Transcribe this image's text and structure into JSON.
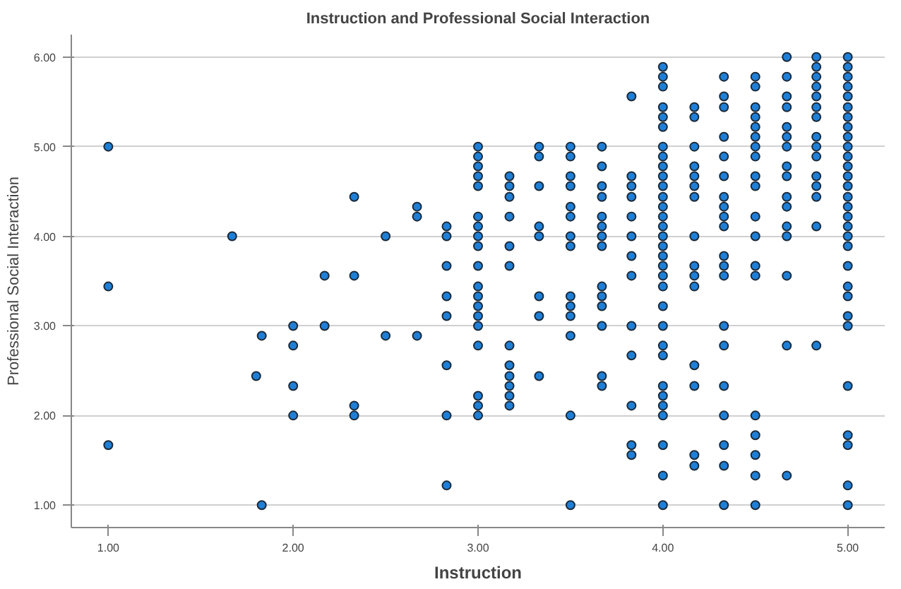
{
  "chart_data": {
    "type": "scatter",
    "title": "Instruction and Professional Social Interaction",
    "xlabel": "Instruction",
    "ylabel": "Professional Social Interaction",
    "xlim": [
      0.8,
      5.2
    ],
    "ylim": [
      0.75,
      6.25
    ],
    "xticks": [
      {
        "value": 1,
        "label": "1.00"
      },
      {
        "value": 2,
        "label": "2.00"
      },
      {
        "value": 3,
        "label": "3.00"
      },
      {
        "value": 4,
        "label": "4.00"
      },
      {
        "value": 5,
        "label": "5.00"
      }
    ],
    "yticks": [
      {
        "value": 1,
        "label": "1.00"
      },
      {
        "value": 2,
        "label": "2.00"
      },
      {
        "value": 3,
        "label": "3.00"
      },
      {
        "value": 4,
        "label": "4.00"
      },
      {
        "value": 5,
        "label": "5.00"
      },
      {
        "value": 6,
        "label": "6.00"
      }
    ],
    "grid": "y",
    "marker": "circle",
    "series": [
      {
        "color": "#1f7fd6",
        "x": [
          1,
          1,
          1,
          1.67,
          1.8,
          1.83,
          1.83,
          2,
          2,
          2,
          2,
          2.17,
          2.17,
          2.33,
          2.33,
          2.33,
          2.33,
          2.5,
          2.5,
          2.67,
          2.67,
          2.67,
          2.83,
          2.83,
          2.83,
          2.83,
          2.83,
          2.83,
          2.83,
          2.83,
          3,
          3,
          3,
          3,
          3,
          3,
          3,
          3,
          3,
          3,
          3,
          3,
          3,
          3,
          3,
          3,
          3,
          3,
          3,
          3.17,
          3.17,
          3.17,
          3.17,
          3.17,
          3.17,
          3.17,
          3.17,
          3.17,
          3.17,
          3.17,
          3.17,
          3.33,
          3.33,
          3.33,
          3.33,
          3.33,
          3.33,
          3.33,
          3.33,
          3.5,
          3.5,
          3.5,
          3.5,
          3.5,
          3.5,
          3.5,
          3.5,
          3.5,
          3.5,
          3.5,
          3.5,
          3.5,
          3.5,
          3.67,
          3.67,
          3.67,
          3.67,
          3.67,
          3.67,
          3.67,
          3.67,
          3.67,
          3.67,
          3.67,
          3.67,
          3.67,
          3.67,
          3.83,
          3.83,
          3.83,
          3.83,
          3.83,
          3.83,
          3.83,
          3.83,
          3.83,
          3.83,
          3.83,
          3.83,
          3.83,
          4,
          4,
          4,
          4,
          4,
          4,
          4,
          4,
          4,
          4,
          4,
          4,
          4,
          4,
          4,
          4,
          4,
          4,
          4,
          4,
          4,
          4,
          4,
          4,
          4,
          4,
          4,
          4,
          4,
          4,
          4,
          4,
          4.17,
          4.17,
          4.17,
          4.17,
          4.17,
          4.17,
          4.17,
          4.17,
          4.17,
          4.17,
          4.17,
          4.17,
          4.17,
          4.17,
          4.17,
          4.33,
          4.33,
          4.33,
          4.33,
          4.33,
          4.33,
          4.33,
          4.33,
          4.33,
          4.33,
          4.33,
          4.33,
          4.33,
          4.33,
          4.33,
          4.33,
          4.33,
          4.33,
          4.33,
          4.33,
          4.5,
          4.5,
          4.5,
          4.5,
          4.5,
          4.5,
          4.5,
          4.5,
          4.5,
          4.5,
          4.5,
          4.5,
          4.5,
          4.5,
          4.5,
          4.5,
          4.5,
          4.5,
          4.5,
          4.67,
          4.67,
          4.67,
          4.67,
          4.67,
          4.67,
          4.67,
          4.67,
          4.67,
          4.67,
          4.67,
          4.67,
          4.67,
          4.67,
          4.67,
          4.67,
          4.83,
          4.83,
          4.83,
          4.83,
          4.83,
          4.83,
          4.83,
          4.83,
          4.83,
          4.83,
          4.83,
          4.83,
          4.83,
          4.83,
          4.83,
          5,
          5,
          5,
          5,
          5,
          5,
          5,
          5,
          5,
          5,
          5,
          5,
          5,
          5,
          5,
          5,
          5,
          5,
          5,
          5,
          5,
          5,
          5,
          5,
          5,
          5,
          5,
          5,
          5,
          5
        ],
        "values": [
          5,
          3.44,
          1.67,
          4,
          2.44,
          2.89,
          1,
          3,
          2.78,
          2.33,
          2,
          3.56,
          3,
          4.44,
          3.56,
          2.11,
          2,
          4,
          2.89,
          4.33,
          4.22,
          2.89,
          4.11,
          4,
          3.67,
          3.33,
          3.11,
          2.56,
          2,
          1.22,
          5,
          4.89,
          4.78,
          4.67,
          4.56,
          4.22,
          4.11,
          4,
          3.89,
          3.67,
          3.44,
          3.33,
          3.22,
          3.11,
          3,
          2.78,
          2.22,
          2.11,
          2,
          4.67,
          4.56,
          4.44,
          4.22,
          3.89,
          3.67,
          2.78,
          2.56,
          2.44,
          2.33,
          2.22,
          2.11,
          5,
          4.89,
          4.56,
          4.11,
          4,
          3.33,
          3.11,
          2.44,
          5,
          4.89,
          4.67,
          4.56,
          4.33,
          4.22,
          4,
          3.89,
          3.33,
          3.22,
          3.11,
          2.89,
          2,
          1,
          5,
          4.78,
          4.56,
          4.44,
          4.22,
          4.11,
          4,
          3.89,
          3.44,
          3.33,
          3.22,
          3,
          2.44,
          2.33,
          5.56,
          4.67,
          4.56,
          4.44,
          4.22,
          4,
          3.78,
          3.56,
          3,
          2.67,
          2.11,
          1.67,
          1.56,
          5.89,
          5.78,
          5.67,
          5.44,
          5.33,
          5.22,
          5,
          4.89,
          4.78,
          4.67,
          4.56,
          4.44,
          4.33,
          4.22,
          4.11,
          4,
          3.89,
          3.78,
          3.67,
          3.56,
          3.44,
          3.22,
          3,
          2.78,
          2.67,
          2.33,
          2.22,
          2.11,
          2,
          1.67,
          1.33,
          1,
          5.44,
          5.33,
          5,
          4.78,
          4.67,
          4.56,
          4.44,
          4,
          3.67,
          3.56,
          3.44,
          2.56,
          2.33,
          1.56,
          1.44,
          5.78,
          5.56,
          5.44,
          5.11,
          4.89,
          4.67,
          4.44,
          4.33,
          4.22,
          4.11,
          3.78,
          3.67,
          3.56,
          3,
          2.78,
          2.33,
          2,
          1.67,
          1.44,
          1,
          5.78,
          5.67,
          5.44,
          5.33,
          5.22,
          5.11,
          5,
          4.89,
          4.67,
          4.56,
          4.22,
          4,
          3.67,
          3.56,
          2,
          1.78,
          1.56,
          1.33,
          1,
          6,
          5.78,
          5.56,
          5.44,
          5.22,
          5.11,
          5,
          4.78,
          4.67,
          4.44,
          4.33,
          4.11,
          4,
          3.56,
          2.78,
          1.33,
          6,
          5.89,
          5.78,
          5.67,
          5.56,
          5.44,
          5.33,
          5.11,
          5,
          4.89,
          4.67,
          4.56,
          4.44,
          4.11,
          2.78,
          6,
          5.89,
          5.78,
          5.67,
          5.56,
          5.44,
          5.33,
          5.22,
          5.11,
          5,
          4.89,
          4.78,
          4.67,
          4.56,
          4.44,
          4.33,
          4.22,
          4.11,
          4,
          3.89,
          3.67,
          3.44,
          3.33,
          3.11,
          3,
          2.33,
          1.78,
          1.67,
          1.22,
          1
        ]
      }
    ]
  }
}
